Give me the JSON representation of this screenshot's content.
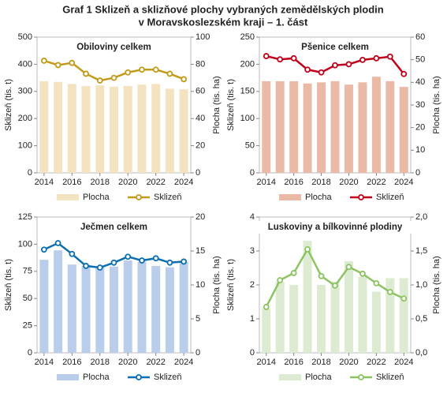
{
  "title": "Graf 1 Sklizeň a sklizňové plochy vybraných  zemědělských plodin",
  "subtitle": "v Moravskoslezském  kraji – 1. část",
  "chart_data": [
    {
      "type": "bar_line",
      "title": "Obiloviny celkem",
      "x": [
        2014,
        2015,
        2016,
        2017,
        2018,
        2019,
        2020,
        2021,
        2022,
        2023,
        2024
      ],
      "xticks": [
        2014,
        2016,
        2018,
        2020,
        2022,
        2024
      ],
      "ylabel": "Sklizeň (tis. t)",
      "y2label": "Plocha (tis. ha)",
      "ylim": [
        0,
        500
      ],
      "yticks": [
        0,
        100,
        200,
        300,
        400,
        500
      ],
      "y2lim": [
        0,
        100
      ],
      "y2ticks": [
        0,
        20,
        40,
        60,
        80,
        100
      ],
      "series": [
        {
          "name": "Plocha",
          "type": "bar",
          "axis": "y2",
          "color": "#f3e3c0",
          "values": [
            67.5,
            67,
            65.5,
            64,
            64.5,
            63.5,
            64,
            65,
            65.5,
            62,
            61.5
          ]
        },
        {
          "name": "Sklizeň",
          "type": "line",
          "axis": "y",
          "color": "#c39b1a",
          "values": [
            413,
            397,
            405,
            365,
            340,
            350,
            370,
            380,
            380,
            365,
            345
          ]
        }
      ]
    },
    {
      "type": "bar_line",
      "title": "Pšenice celkem",
      "x": [
        2014,
        2015,
        2016,
        2017,
        2018,
        2019,
        2020,
        2021,
        2022,
        2023,
        2024
      ],
      "xticks": [
        2014,
        2016,
        2018,
        2020,
        2022,
        2024
      ],
      "ylabel": "Sklizeň (tis. t)",
      "y2label": "Plocha (tis. ha)",
      "ylim": [
        0,
        250
      ],
      "yticks": [
        0,
        50,
        100,
        150,
        200,
        250
      ],
      "y2lim": [
        0,
        60
      ],
      "y2ticks": [
        0,
        10,
        20,
        30,
        40,
        50,
        60
      ],
      "series": [
        {
          "name": "Plocha",
          "type": "bar",
          "axis": "y2",
          "color": "#ebbaa7",
          "values": [
            40.5,
            40.5,
            40.5,
            39.5,
            40,
            40.5,
            39,
            40,
            42.5,
            40.5,
            38
          ]
        },
        {
          "name": "Sklizeň",
          "type": "line",
          "axis": "y",
          "color": "#c0001a",
          "values": [
            215,
            209,
            211,
            190,
            185,
            198,
            200,
            208,
            211,
            214,
            182
          ]
        }
      ]
    },
    {
      "type": "bar_line",
      "title": "Ječmen celkem",
      "x": [
        2014,
        2015,
        2016,
        2017,
        2018,
        2019,
        2020,
        2021,
        2022,
        2023,
        2024
      ],
      "xticks": [
        2014,
        2016,
        2018,
        2020,
        2022,
        2024
      ],
      "ylabel": "Sklizeň (tis. t)",
      "y2label": "Plocha (tis. ha)",
      "ylim": [
        0,
        125
      ],
      "yticks": [
        0,
        25,
        50,
        75,
        100,
        125
      ],
      "y2lim": [
        0,
        20
      ],
      "y2ticks": [
        0,
        5,
        10,
        15,
        20
      ],
      "series": [
        {
          "name": "Plocha",
          "type": "bar",
          "axis": "y2",
          "color": "#bacdea",
          "values": [
            13.7,
            15.1,
            13,
            12.8,
            12.7,
            12.7,
            13.6,
            13.4,
            12.8,
            12.6,
            13.4
          ]
        },
        {
          "name": "Sklizeň",
          "type": "line",
          "axis": "y",
          "color": "#0b6fb0",
          "values": [
            95,
            101,
            91,
            80,
            78.5,
            83,
            88.5,
            85,
            87,
            83,
            84
          ]
        }
      ]
    },
    {
      "type": "bar_line",
      "title": "Luskoviny a bílkovinné plodiny",
      "x": [
        2014,
        2015,
        2016,
        2017,
        2018,
        2019,
        2020,
        2021,
        2022,
        2023,
        2024
      ],
      "xticks": [
        2014,
        2016,
        2018,
        2020,
        2022,
        2024
      ],
      "ylabel": "Sklizeň (tis. t)",
      "y2label": "Plocha (tis. ha)",
      "ylim": [
        0,
        4
      ],
      "yticks": [
        0,
        1,
        2,
        3,
        4
      ],
      "y2lim": [
        0,
        2
      ],
      "y2ticks": [
        {
          "value": 0,
          "label": "0,0"
        },
        {
          "value": 0.5,
          "label": "0,5"
        },
        {
          "value": 1,
          "label": "1,0"
        },
        {
          "value": 1.5,
          "label": "1,5"
        },
        {
          "value": 2,
          "label": "2,0"
        }
      ],
      "series": [
        {
          "name": "Plocha",
          "type": "bar",
          "axis": "y2",
          "color": "#ddebd3",
          "values": [
            0.65,
            1.05,
            1.0,
            1.65,
            1.0,
            1.05,
            1.35,
            1.12,
            0.9,
            1.1,
            1.1
          ]
        },
        {
          "name": "Sklizeň",
          "type": "line",
          "axis": "y",
          "color": "#8dc462",
          "values": [
            1.35,
            2.14,
            2.35,
            3.05,
            2.26,
            1.98,
            2.53,
            2.33,
            2.05,
            1.79,
            1.6
          ]
        }
      ]
    }
  ]
}
